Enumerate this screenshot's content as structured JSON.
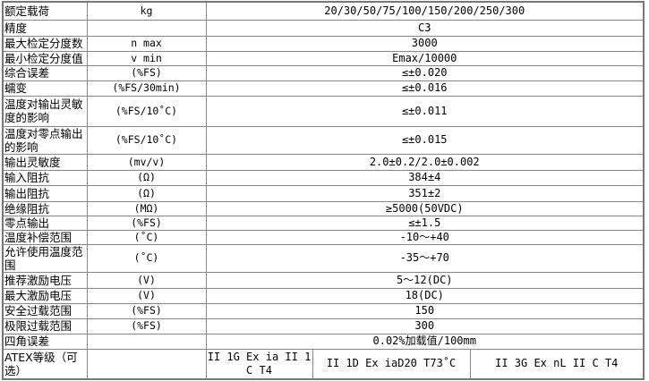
{
  "rows": [
    {
      "name": "额定载荷",
      "unit": "kg",
      "value": "20/30/50/75/100/150/200/250/300"
    },
    {
      "name": "精度",
      "unit": "",
      "value": "C3"
    },
    {
      "name": "最大检定分度数",
      "unit": "n max",
      "value": "3000"
    },
    {
      "name": "最小检定分度值",
      "unit": "v min",
      "value": "Emax/10000"
    },
    {
      "name": "综合误差",
      "unit": "(%FS)",
      "value": "≤±0.020"
    },
    {
      "name": "蠕变",
      "unit": "(%FS/30min)",
      "value": "≤±0.016"
    },
    {
      "name": "温度对输出灵敏度的影响",
      "unit": "(%FS/10˚C)",
      "value": "≤±0.011"
    },
    {
      "name": "温度对零点输出的影响",
      "unit": "(%FS/10˚C)",
      "value": "≤±0.015"
    },
    {
      "name": "输出灵敏度",
      "unit": "(mv/v)",
      "value": "2.0±0.2/2.0±0.002"
    },
    {
      "name": "输入阻抗",
      "unit": "(Ω)",
      "value": "384±4"
    },
    {
      "name": "输出阻抗",
      "unit": "(Ω)",
      "value": "351±2"
    },
    {
      "name": "绝缘阻抗",
      "unit": "(MΩ)",
      "value": "≥5000(50VDC)"
    },
    {
      "name": "零点输出",
      "unit": "(%FS)",
      "value": "≤±1.5"
    },
    {
      "name": "温度补偿范围",
      "unit": "(˚C)",
      "value": "-10～+40"
    },
    {
      "name": "允许使用温度范围",
      "unit": "(˚C)",
      "value": "-35～+70"
    },
    {
      "name": "推荐激励电压",
      "unit": "(V)",
      "value": "5～12(DC)"
    },
    {
      "name": "最大激励电压",
      "unit": "(V)",
      "value": "18(DC)"
    },
    {
      "name": "安全过载范围",
      "unit": "(%FS)",
      "value": "150"
    },
    {
      "name": "极限过载范围",
      "unit": "(%FS)",
      "value": "300"
    },
    {
      "name": "四角误差",
      "unit": "",
      "value": "0.02%加载值/100mm"
    }
  ],
  "atex": {
    "name": "ATEX等级（可选）",
    "unit": "",
    "options": [
      "II 1G Ex ia II 1 C T4",
      "II 1D Ex iaD20 T73˚C",
      "II 3G Ex nL II C T4"
    ]
  }
}
